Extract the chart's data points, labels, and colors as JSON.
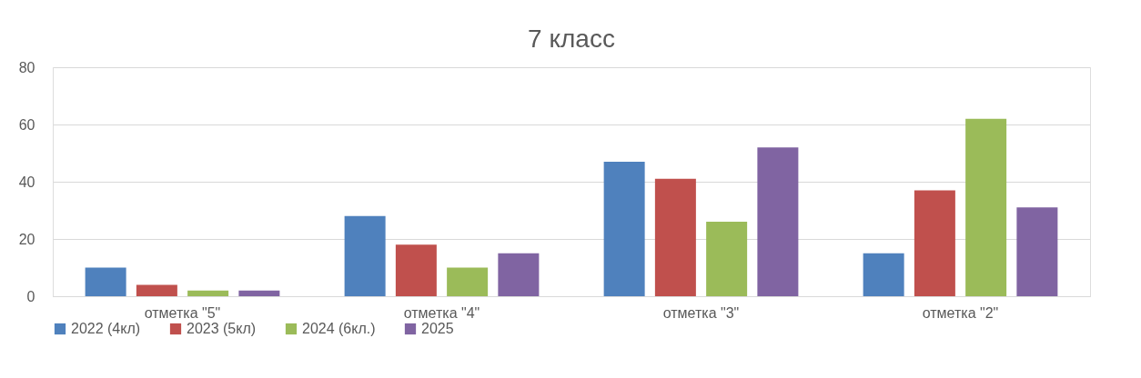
{
  "chart_data": {
    "type": "bar",
    "title": "7 класс",
    "categories": [
      "отметка \"5\"",
      "отметка \"4\"",
      "отметка \"3\"",
      "отметка \"2\""
    ],
    "series": [
      {
        "name": "2022 (4кл)",
        "color": "#4f81bd",
        "values": [
          10,
          28,
          47,
          15
        ]
      },
      {
        "name": "2023 (5кл)",
        "color": "#c0504d",
        "values": [
          4,
          18,
          41,
          37
        ]
      },
      {
        "name": "2024 (6кл.)",
        "color": "#9bbb59",
        "values": [
          2,
          10,
          26,
          62
        ]
      },
      {
        "name": "2025",
        "color": "#8064a2",
        "values": [
          2,
          15,
          52,
          31
        ]
      }
    ],
    "ylim": [
      0,
      80
    ],
    "yticks": [
      0,
      20,
      40,
      60,
      80
    ],
    "grid": "y",
    "legend": "bottom"
  }
}
